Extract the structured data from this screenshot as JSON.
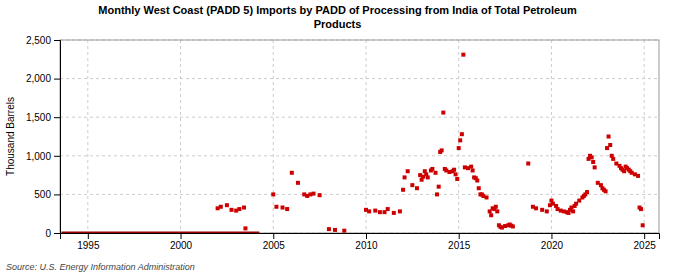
{
  "chart_data": {
    "type": "scatter",
    "title": "Monthly West Coast (PADD 5) Imports by PADD of Processing from India of Total Petroleum\nProducts",
    "ylabel": "Thousand Barrels",
    "annotations": [
      "Source: U.S. Energy Information Administration"
    ],
    "xlim": [
      1993.5,
      2025.8
    ],
    "xticks": [
      1995,
      2000,
      2005,
      2010,
      2015,
      2020,
      2025
    ],
    "ylim": [
      0,
      2500
    ],
    "yticks": [
      0,
      500,
      {
        "value": 1000,
        "label": "1,000"
      },
      {
        "value": 1500,
        "label": "1,500"
      },
      {
        "value": 2000,
        "label": "2,000"
      },
      {
        "value": 2500,
        "label": "2,500"
      }
    ],
    "grid": true,
    "series": [
      {
        "type": "line",
        "color": "#990000",
        "x": [
          1993.583,
          2004.25
        ],
        "values": [
          0,
          0
        ]
      },
      {
        "type": "scatter",
        "color": "#cc0000",
        "marker": "square",
        "x": [
          2002.0,
          2002.17,
          2002.5,
          2002.75,
          2003.0,
          2003.17,
          2003.42,
          2003.5,
          2005.0,
          2005.17,
          2005.5,
          2005.75,
          2006.0,
          2006.33,
          2006.67,
          2006.83,
          2007.0,
          2007.17,
          2007.5,
          2008.0,
          2008.33,
          2008.83,
          2010.0,
          2010.17,
          2010.5,
          2010.75,
          2011.0,
          2011.17,
          2011.5,
          2011.83,
          2012.0,
          2012.08,
          2012.25,
          2012.5,
          2012.75,
          2012.92,
          2013.0,
          2013.08,
          2013.17,
          2013.25,
          2013.33,
          2013.5,
          2013.58,
          2013.75,
          2013.83,
          2013.92,
          2014.0,
          2014.08,
          2014.17,
          2014.25,
          2014.33,
          2014.5,
          2014.67,
          2014.75,
          2014.83,
          2014.92,
          2015.0,
          2015.08,
          2015.17,
          2015.25,
          2015.33,
          2015.5,
          2015.67,
          2015.75,
          2015.83,
          2015.92,
          2016.0,
          2016.08,
          2016.17,
          2016.25,
          2016.33,
          2016.5,
          2016.67,
          2016.75,
          2016.83,
          2016.92,
          2017.0,
          2017.08,
          2017.17,
          2017.25,
          2017.33,
          2017.5,
          2017.67,
          2017.75,
          2017.83,
          2017.92,
          2018.75,
          2019.0,
          2019.17,
          2019.5,
          2019.75,
          2019.92,
          2020.0,
          2020.08,
          2020.25,
          2020.33,
          2020.5,
          2020.67,
          2020.83,
          2020.92,
          2021.0,
          2021.08,
          2021.17,
          2021.25,
          2021.33,
          2021.5,
          2021.67,
          2021.75,
          2021.83,
          2021.92,
          2022.0,
          2022.08,
          2022.17,
          2022.25,
          2022.33,
          2022.5,
          2022.67,
          2022.75,
          2022.83,
          2022.92,
          2023.0,
          2023.08,
          2023.17,
          2023.25,
          2023.33,
          2023.5,
          2023.67,
          2023.75,
          2023.83,
          2023.92,
          2024.0,
          2024.08,
          2024.17,
          2024.25,
          2024.33,
          2024.5,
          2024.67,
          2024.75,
          2024.83,
          2024.92
        ],
        "values": [
          320,
          340,
          360,
          300,
          290,
          310,
          330,
          60,
          500,
          340,
          330,
          310,
          780,
          650,
          500,
          480,
          500,
          510,
          490,
          50,
          40,
          30,
          300,
          280,
          290,
          270,
          270,
          310,
          260,
          280,
          560,
          720,
          800,
          620,
          580,
          750,
          690,
          730,
          800,
          760,
          720,
          810,
          830,
          780,
          500,
          600,
          1050,
          1070,
          1560,
          830,
          810,
          790,
          800,
          820,
          760,
          700,
          1100,
          1200,
          1280,
          2310,
          850,
          840,
          860,
          810,
          720,
          710,
          680,
          580,
          500,
          500,
          480,
          460,
          280,
          230,
          320,
          310,
          340,
          280,
          100,
          80,
          70,
          90,
          100,
          110,
          95,
          85,
          900,
          340,
          320,
          300,
          280,
          360,
          420,
          380,
          350,
          310,
          290,
          280,
          270,
          260,
          300,
          330,
          280,
          350,
          380,
          420,
          460,
          480,
          500,
          530,
          960,
          1000,
          980,
          920,
          850,
          650,
          620,
          580,
          560,
          540,
          1100,
          1250,
          1140,
          1000,
          960,
          900,
          870,
          840,
          820,
          800,
          860,
          840,
          820,
          800,
          780,
          760,
          740,
          330,
          310,
          100
        ]
      }
    ]
  }
}
